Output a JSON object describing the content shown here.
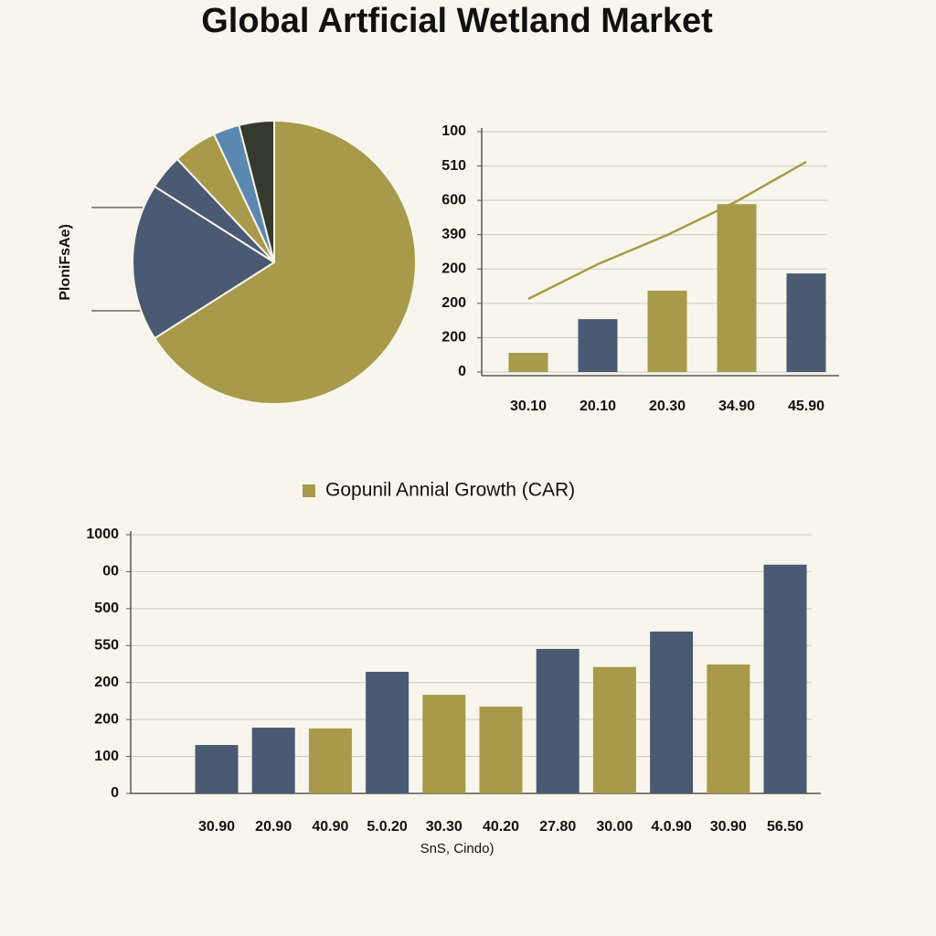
{
  "title": "Global Artficial Wetland Market",
  "chart_data": [
    {
      "type": "pie",
      "y_label": "PloniFsAe)",
      "values": [
        66,
        18,
        4,
        5,
        3,
        4
      ],
      "colors": [
        "#a89a4a",
        "#4a5a72",
        "#4a5a72",
        "#a89a4a",
        "#5a88b0",
        "#363a2c"
      ]
    },
    {
      "type": "bar_line",
      "categories": [
        "30.10",
        "20.10",
        "20.30",
        "34.90",
        "45.90"
      ],
      "ylim": [
        0,
        700
      ],
      "yticks": [
        0,
        {
          "value": 100,
          "label": "200"
        },
        {
          "value": 200,
          "label": "200"
        },
        {
          "value": 300,
          "label": "200"
        },
        {
          "value": 400,
          "label": "390"
        },
        {
          "value": 500,
          "label": "600"
        },
        {
          "value": 600,
          "label": "510"
        },
        {
          "value": 700,
          "label": "100"
        }
      ],
      "grid": true,
      "series": [
        {
          "type": "bar",
          "colors": [
            "#a89a4a",
            "#4a5a72",
            "#a89a4a",
            "#a89a4a",
            "#4a5a72"
          ],
          "values": [
            56,
            154,
            237,
            489,
            287
          ]
        },
        {
          "type": "line",
          "color": "#a89a4a",
          "values": [
            213,
            314,
            399,
            497,
            612
          ]
        }
      ]
    },
    {
      "type": "bar",
      "categories": [
        "30.90",
        "20.90",
        "40.90",
        "5.0.20",
        "30.30",
        "40.20",
        "27.80",
        "30.00",
        "4.0.90",
        "30.90",
        "56.50"
      ],
      "x_label": "SnS, Cindo)",
      "ylim": [
        0,
        700
      ],
      "yticks": [
        0,
        100,
        {
          "value": 200,
          "label": "200"
        },
        {
          "value": 300,
          "label": "200"
        },
        {
          "value": 400,
          "label": "550"
        },
        500,
        {
          "value": 600,
          "label": "00"
        },
        {
          "value": 700,
          "label": "1000"
        }
      ],
      "grid": true,
      "series": [
        {
          "name": "Gopunil Annial Growth (CAR)",
          "color": "#a89a4a",
          "colors": [
            "#4a5a72",
            "#4a5a72",
            "#a89a4a",
            "#4a5a72",
            "#a89a4a",
            "#a89a4a",
            "#4a5a72",
            "#a89a4a",
            "#4a5a72",
            "#a89a4a",
            "#4a5a72"
          ],
          "values": [
            131,
            178,
            176,
            329,
            267,
            235,
            391,
            342,
            438,
            349,
            619
          ]
        }
      ]
    }
  ]
}
